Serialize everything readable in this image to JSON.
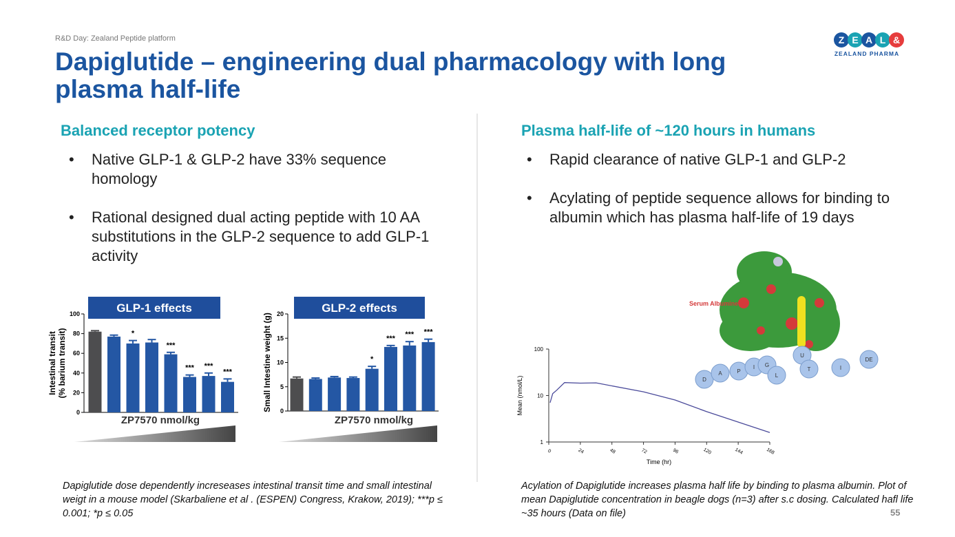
{
  "header": {
    "kicker": "R&D Day: Zealand Peptide platform",
    "title": "Dapiglutide – engineering dual pharmacology with long plasma half-life"
  },
  "logo": {
    "letters": [
      "Z",
      "E",
      "A",
      "L",
      "&"
    ],
    "name": "ZEALAND PHARMA"
  },
  "left": {
    "heading": "Balanced receptor potency",
    "bullets": [
      "Native GLP-1 & GLP-2 have 33% sequence homology",
      "Rational designed dual acting peptide with 10 AA substitutions in the GLP-2 sequence to add GLP-1 activity"
    ],
    "caption": "Dapiglutide dose dependently increseases intestinal transit time and small intestinal weigt in a mouse model (Skarbaliene et al . (ESPEN) Congress, Krakow, 2019); ***p ≤ 0.001; *p ≤ 0.05"
  },
  "right": {
    "heading": "Plasma half-life of ~120 hours in humans",
    "bullets": [
      "Rapid clearance of native GLP-1 and GLP-2",
      "Acylating of peptide sequence allows for binding to albumin which has plasma half-life of 19 days"
    ],
    "caption": "Acylation of Dapiglutide increases plasma half life by binding to plasma albumin. Plot of mean Dapiglutide concentration in beagle dogs (n=3) after s.c dosing. Calculated hafl life ~35 hours (Data on file)"
  },
  "molecule": {
    "label": "Serum Albumine",
    "residues": [
      "D",
      "A",
      "P",
      "I",
      "G",
      "L",
      "U",
      "T",
      "I",
      "DE"
    ]
  },
  "charts": [
    {
      "type": "bar",
      "title": "GLP-1 effects",
      "ylabel": [
        "Intestinal transit",
        "(% barium transit)"
      ],
      "xlabel": "ZP7570 nmol/kg",
      "ylim": [
        0,
        100
      ],
      "yticks": [
        0,
        20,
        40,
        60,
        80,
        100
      ],
      "values": [
        82,
        77,
        70,
        71,
        59,
        36,
        37,
        31
      ],
      "errors": [
        1,
        1.5,
        3,
        3,
        2,
        2,
        3,
        3
      ],
      "annotations": [
        null,
        null,
        "*",
        null,
        "***",
        "***",
        "***",
        "***"
      ],
      "colors": [
        "#4d4d4f",
        "#2457a4",
        "#2457a4",
        "#2457a4",
        "#2457a4",
        "#2457a4",
        "#2457a4",
        "#2457a4"
      ]
    },
    {
      "type": "bar",
      "title": "GLP-2 effects",
      "ylabel": "Small Intestine weight (g)",
      "xlabel": "ZP7570 nmol/kg",
      "ylim": [
        0,
        20
      ],
      "yticks": [
        0,
        5,
        10,
        15,
        20
      ],
      "values": [
        6.7,
        6.6,
        6.9,
        6.8,
        8.7,
        13.2,
        13.5,
        14.2
      ],
      "errors": [
        0.3,
        0.2,
        0.2,
        0.2,
        0.5,
        0.3,
        0.8,
        0.6
      ],
      "annotations": [
        null,
        null,
        null,
        null,
        "*",
        "***",
        "***",
        "***"
      ],
      "colors": [
        "#4d4d4f",
        "#2457a4",
        "#2457a4",
        "#2457a4",
        "#2457a4",
        "#2457a4",
        "#2457a4",
        "#2457a4"
      ]
    },
    {
      "type": "line",
      "log_y": true,
      "xlabel": "Time (hr)",
      "ylabel": "Mean (nmol/L)",
      "xlim": [
        0,
        168
      ],
      "xticks": [
        0,
        24,
        48,
        72,
        96,
        120,
        144,
        168
      ],
      "ylim": [
        1,
        100
      ],
      "yticks": [
        1,
        10,
        100
      ],
      "color": "#4a4a9a",
      "x": [
        1,
        3,
        6,
        12,
        24,
        36,
        72,
        96,
        120,
        168
      ],
      "values": [
        7,
        11,
        13,
        19,
        18.5,
        18.7,
        12,
        8,
        4.5,
        1.6
      ]
    }
  ],
  "page_number": "55"
}
